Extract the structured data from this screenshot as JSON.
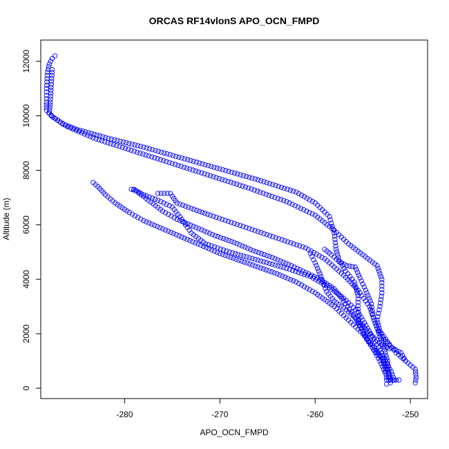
{
  "chart_data": {
    "type": "scatter",
    "title": "ORCAS RF14vlonS APO_OCN_FMPD",
    "xlabel": "APO_OCN_FMPD",
    "ylabel": "Altitude (m)",
    "xlim": [
      -288.8,
      -248.2
    ],
    "ylim": [
      -380,
      12780
    ],
    "x_ticks": [
      -280,
      -270,
      -260,
      -250
    ],
    "x_tick_labels": [
      "-280",
      "-270",
      "-260",
      "-250"
    ],
    "y_ticks": [
      0,
      2000,
      4000,
      6000,
      8000,
      10000,
      12000
    ],
    "y_tick_labels": [
      "0",
      "2000",
      "4000",
      "6000",
      "8000",
      "10000",
      "12000"
    ],
    "marker": "open-circle",
    "colors": {
      "points": "#0000ff",
      "axes": "#000000",
      "background": "#ffffff"
    },
    "grid": false,
    "series": [
      {
        "points": [
          [
            -287.3,
            12200
          ],
          [
            -287.6,
            12100
          ],
          [
            -287.9,
            11900
          ],
          [
            -288.1,
            11600
          ],
          [
            -288.2,
            11000
          ],
          [
            -288.2,
            10500
          ],
          [
            -288.2,
            10200
          ],
          [
            -287.7,
            10000
          ],
          [
            -287.3,
            9900
          ],
          [
            -286.5,
            9700
          ],
          [
            -285.0,
            9500
          ],
          [
            -282.0,
            9200
          ],
          [
            -278.0,
            8850
          ],
          [
            -274.0,
            8450
          ],
          [
            -270.0,
            8050
          ],
          [
            -266.0,
            7650
          ],
          [
            -262.0,
            7200
          ],
          [
            -260.0,
            6800
          ],
          [
            -258.5,
            6300
          ],
          [
            -258.0,
            5700
          ],
          [
            -257.8,
            5100
          ],
          [
            -257.5,
            4700
          ],
          [
            -256.8,
            4300
          ],
          [
            -255.9,
            3900
          ],
          [
            -255.5,
            3400
          ],
          [
            -255.5,
            2900
          ],
          [
            -255.4,
            2400
          ],
          [
            -254.6,
            1800
          ],
          [
            -253.8,
            1400
          ],
          [
            -253.0,
            1100
          ],
          [
            -252.6,
            700
          ],
          [
            -252.5,
            300
          ],
          [
            -252.5,
            150
          ]
        ]
      },
      {
        "points": [
          [
            -287.6,
            11700
          ],
          [
            -287.8,
            10500
          ],
          [
            -287.9,
            10100
          ],
          [
            -287.5,
            9950
          ],
          [
            -286.0,
            9600
          ],
          [
            -283.0,
            9150
          ],
          [
            -279.0,
            8700
          ],
          [
            -275.0,
            8250
          ],
          [
            -271.0,
            7800
          ],
          [
            -267.0,
            7350
          ],
          [
            -263.0,
            6850
          ],
          [
            -260.0,
            6350
          ],
          [
            -258.0,
            5800
          ],
          [
            -256.5,
            5300
          ],
          [
            -255.0,
            4900
          ],
          [
            -253.5,
            4500
          ],
          [
            -253.0,
            4000
          ],
          [
            -253.0,
            3500
          ],
          [
            -253.2,
            3000
          ],
          [
            -253.5,
            2500
          ],
          [
            -253.2,
            2100
          ],
          [
            -252.4,
            1700
          ],
          [
            -251.5,
            1300
          ],
          [
            -250.5,
            1000
          ],
          [
            -249.5,
            700
          ],
          [
            -249.4,
            400
          ],
          [
            -249.5,
            200
          ]
        ]
      },
      {
        "points": [
          [
            -276.5,
            7150
          ],
          [
            -275.2,
            7150
          ],
          [
            -275.0,
            7050
          ],
          [
            -274.5,
            6800
          ],
          [
            -273.0,
            6600
          ],
          [
            -271.0,
            6350
          ],
          [
            -268.5,
            6050
          ],
          [
            -266.0,
            5750
          ],
          [
            -263.5,
            5450
          ],
          [
            -261.0,
            5150
          ],
          [
            -259.0,
            4750
          ],
          [
            -257.0,
            4150
          ],
          [
            -255.5,
            3600
          ],
          [
            -254.3,
            3000
          ],
          [
            -253.8,
            2500
          ],
          [
            -253.3,
            2000
          ],
          [
            -252.8,
            1500
          ],
          [
            -252.4,
            1000
          ],
          [
            -252.3,
            600
          ],
          [
            -252.3,
            300
          ],
          [
            -251.8,
            300
          ],
          [
            -251.2,
            300
          ]
        ]
      },
      {
        "points": [
          [
            -279.3,
            7300
          ],
          [
            -278.8,
            7250
          ],
          [
            -278.0,
            7100
          ],
          [
            -276.5,
            6900
          ],
          [
            -275.0,
            6650
          ],
          [
            -274.0,
            6200
          ],
          [
            -273.0,
            5700
          ],
          [
            -271.5,
            5300
          ],
          [
            -269.0,
            5000
          ],
          [
            -266.0,
            4700
          ],
          [
            -263.0,
            4400
          ],
          [
            -260.5,
            4100
          ],
          [
            -258.5,
            3700
          ],
          [
            -257.0,
            3300
          ],
          [
            -255.5,
            2800
          ],
          [
            -254.5,
            2200
          ],
          [
            -253.5,
            1600
          ],
          [
            -252.6,
            1000
          ],
          [
            -252.0,
            600
          ],
          [
            -251.7,
            300
          ]
        ]
      },
      {
        "points": [
          [
            -279.0,
            7300
          ],
          [
            -277.5,
            6900
          ],
          [
            -276.0,
            6500
          ],
          [
            -274.5,
            6200
          ],
          [
            -272.5,
            5900
          ],
          [
            -270.5,
            5600
          ],
          [
            -268.5,
            5350
          ],
          [
            -266.5,
            5050
          ],
          [
            -264.5,
            4800
          ],
          [
            -262.5,
            4500
          ],
          [
            -261.0,
            4250
          ],
          [
            -259.5,
            4000
          ],
          [
            -258.0,
            3650
          ],
          [
            -257.0,
            3200
          ],
          [
            -256.0,
            2700
          ],
          [
            -255.0,
            2100
          ],
          [
            -254.0,
            1500
          ],
          [
            -253.2,
            1000
          ],
          [
            -252.7,
            600
          ]
        ]
      },
      {
        "points": [
          [
            -283.3,
            7550
          ],
          [
            -282.8,
            7400
          ],
          [
            -282.0,
            7100
          ],
          [
            -281.0,
            6800
          ],
          [
            -279.5,
            6450
          ],
          [
            -278.0,
            6150
          ],
          [
            -276.0,
            5850
          ],
          [
            -274.0,
            5550
          ],
          [
            -272.0,
            5250
          ],
          [
            -270.0,
            4950
          ],
          [
            -268.0,
            4700
          ],
          [
            -266.0,
            4450
          ],
          [
            -264.0,
            4200
          ],
          [
            -262.0,
            3900
          ],
          [
            -260.0,
            3500
          ],
          [
            -258.0,
            3000
          ],
          [
            -256.5,
            2500
          ],
          [
            -255.0,
            2000
          ],
          [
            -253.8,
            1500
          ],
          [
            -252.8,
            1000
          ],
          [
            -252.2,
            500
          ],
          [
            -252.1,
            200
          ]
        ]
      },
      {
        "points": [
          [
            -259.0,
            5100
          ],
          [
            -258.3,
            4900
          ],
          [
            -257.5,
            4650
          ],
          [
            -256.7,
            4500
          ],
          [
            -255.8,
            4450
          ],
          [
            -255.3,
            4050
          ],
          [
            -254.7,
            3600
          ],
          [
            -254.1,
            3100
          ],
          [
            -253.9,
            2600
          ],
          [
            -253.5,
            2200
          ],
          [
            -252.8,
            1800
          ],
          [
            -252.0,
            1500
          ],
          [
            -251.0,
            1300
          ],
          [
            -250.5,
            1000
          ]
        ]
      },
      {
        "points": [
          [
            -260.5,
            4950
          ],
          [
            -260.0,
            4600
          ],
          [
            -259.5,
            4200
          ],
          [
            -259.2,
            3900
          ],
          [
            -258.8,
            3550
          ],
          [
            -258.0,
            3200
          ],
          [
            -257.0,
            2950
          ],
          [
            -256.0,
            2650
          ],
          [
            -255.0,
            2300
          ],
          [
            -254.5,
            2050
          ],
          [
            -253.8,
            1850
          ],
          [
            -253.0,
            1600
          ],
          [
            -252.2,
            1450
          ]
        ]
      }
    ]
  }
}
